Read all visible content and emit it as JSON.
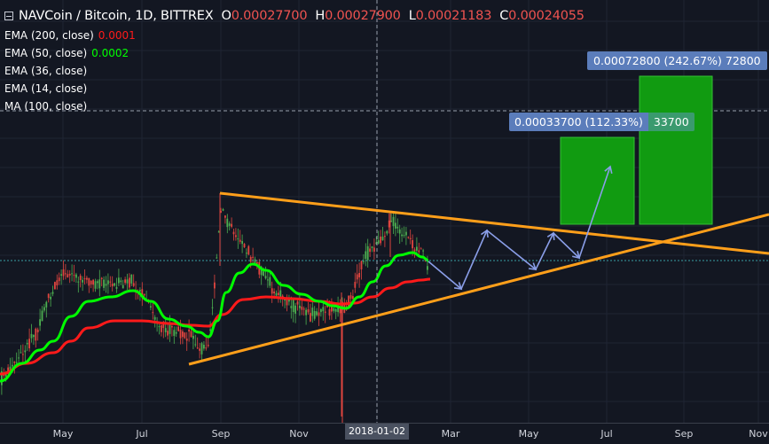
{
  "header": {
    "symbol": "NAVCoin / Bitcoin, 1D, BITTREX",
    "o_label": "O",
    "o_value": "0.00027700",
    "h_label": "H",
    "h_value": "0.00027900",
    "l_label": "L",
    "l_value": "0.00021183",
    "c_label": "C",
    "c_value": "0.00024055"
  },
  "indicators": [
    {
      "label": "EMA (200, close)",
      "value": "0.0001",
      "color": "#ff1a1a"
    },
    {
      "label": "EMA (50, close)",
      "value": "0.0002",
      "color": "#00ff00"
    },
    {
      "label": "EMA (36, close)",
      "value": ""
    },
    {
      "label": "EMA (14, close)",
      "value": ""
    },
    {
      "label": "MA (100, close)",
      "value": ""
    }
  ],
  "targets": {
    "small": {
      "price": "0.00033700 (112.33%)",
      "ticks": "33700"
    },
    "large": {
      "label": "0.00072800 (242.67%) 72800"
    }
  },
  "axis": {
    "months": [
      "May",
      "Jul",
      "Sep",
      "Nov",
      "Mar",
      "May",
      "Jul",
      "Sep",
      "Nov"
    ],
    "cursor_date": "2018-01-02"
  },
  "colors": {
    "background": "#131722",
    "ema50": "#00ff00",
    "ema200": "#ff1a1a",
    "trendline": "#ff9f1a",
    "projection": "#8a9ee8",
    "target_box": "#119b11"
  },
  "chart_data": {
    "type": "candlestick",
    "title": "NAVCoin / Bitcoin, 1D, BITTREX",
    "ohlc_last": {
      "open": 0.000277,
      "high": 0.000279,
      "low": 0.00021183,
      "close": 0.00024055
    },
    "series": [
      {
        "name": "EMA (200, close)",
        "last_value": 0.0001
      },
      {
        "name": "EMA (50, close)",
        "last_value": 0.0002
      }
    ],
    "x_tick_labels": [
      "May",
      "Jul",
      "Sep",
      "Nov",
      "2018-01-02",
      "Mar",
      "May",
      "Jul",
      "Sep",
      "Nov"
    ],
    "projected_targets": [
      {
        "price": 0.000337,
        "percent": 112.33,
        "ticks": 33700
      },
      {
        "price": 0.000728,
        "percent": 242.67,
        "ticks": 72800
      }
    ],
    "pattern": "symmetrical triangle"
  }
}
